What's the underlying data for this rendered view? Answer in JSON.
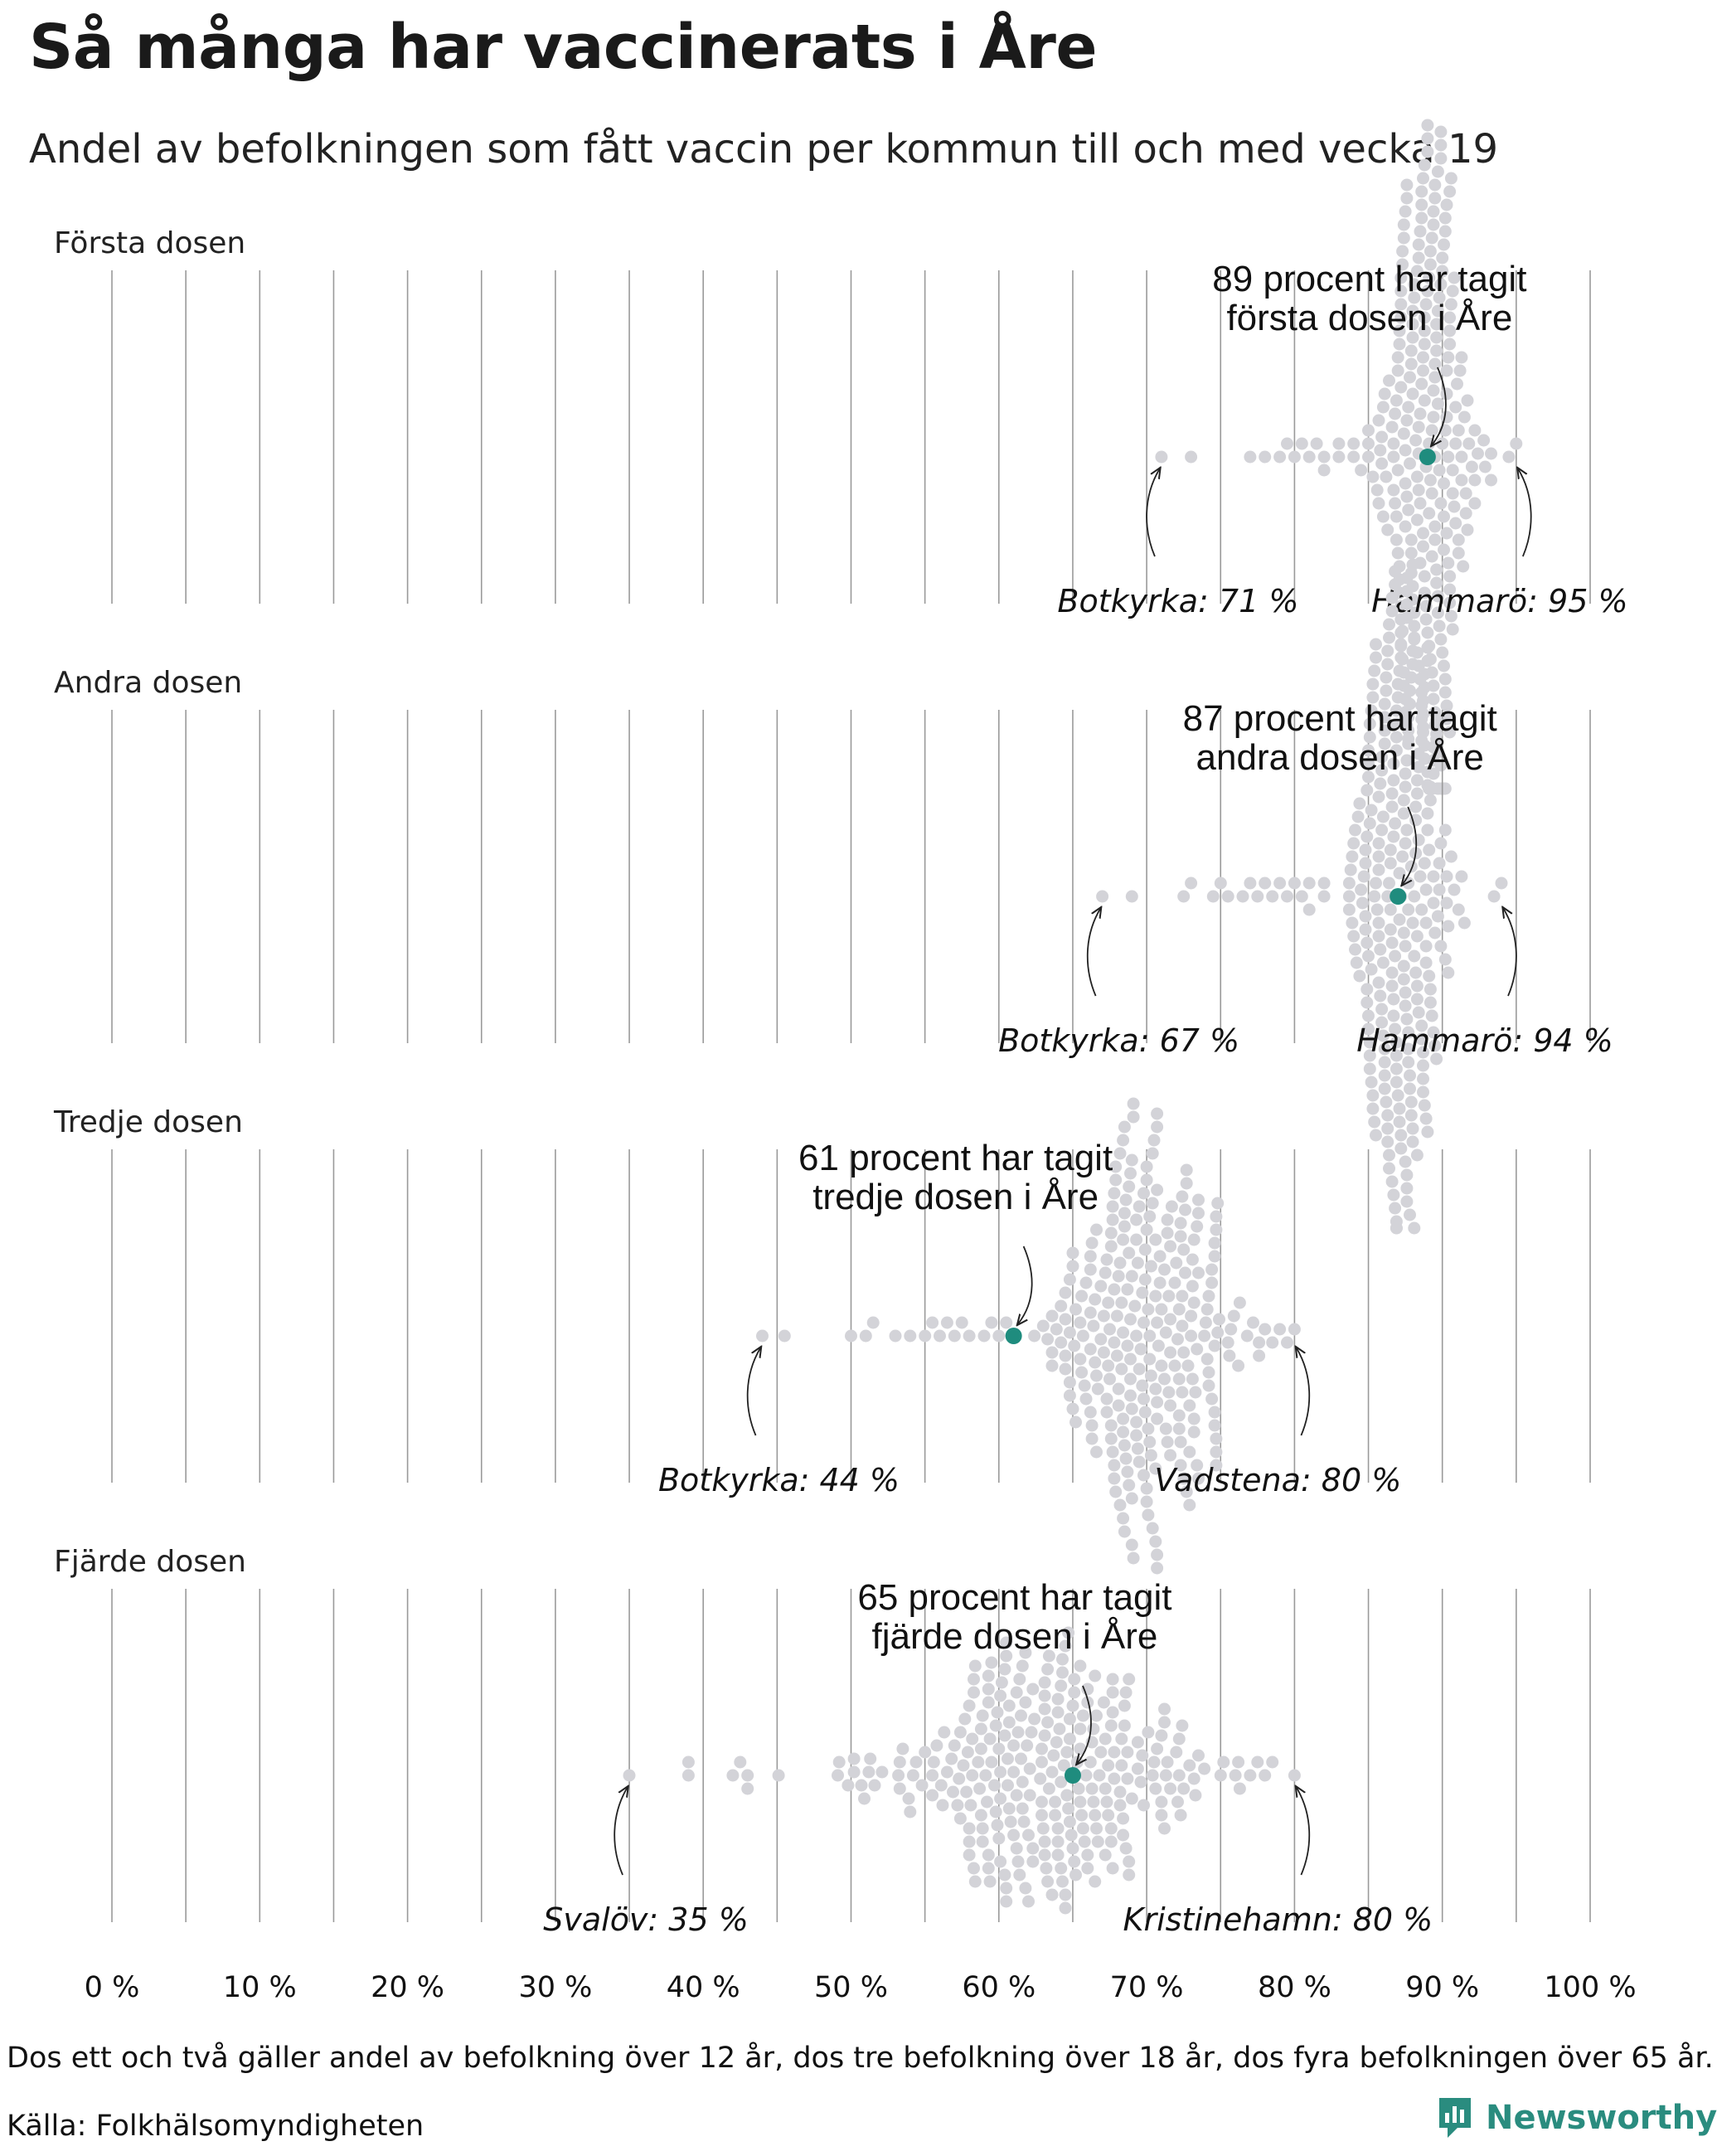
{
  "title": "Så många har vaccinerats i Åre",
  "subtitle": "Andel av befolkningen som fått vaccin per kommun till och med vecka 19",
  "footnote": "Dos ett och två gäller andel av befolkning över 12 år, dos tre befolkning över 18 år, dos fyra befolkningen över 65 år.",
  "source": "Källa: Folkhälsomyndigheten",
  "brand": "Newsworthy",
  "colors": {
    "highlight": "#1f8c7e",
    "dots": "#d3d3d8",
    "grid": "#9a9a9a",
    "text": "#1a1a1a"
  },
  "chart_data": {
    "type": "scatter",
    "subtype": "beeswarm",
    "x_axis": {
      "range": [
        0,
        100
      ],
      "unit": "%",
      "ticks": [
        "0 %",
        "10 %",
        "20 %",
        "30 %",
        "40 %",
        "50 %",
        "60 %",
        "70 %",
        "80 %",
        "90 %",
        "100 %"
      ],
      "grid": true,
      "minor_grid_step": 5
    },
    "panels": [
      {
        "name": "Första dosen",
        "highlight": {
          "value": 89,
          "label_line1": "89 procent har tagit",
          "label_line2": "första dosen i Åre"
        },
        "min": {
          "label": "Botkyrka: 71 %",
          "value": 71
        },
        "max": {
          "label": "Hammarö: 95 %",
          "value": 95
        },
        "distribution": {
          "n": 289,
          "mode": 89,
          "spread": 2.2,
          "tail_points": [
            71,
            73,
            77,
            78,
            79,
            79.5,
            80,
            80.5,
            81,
            81.5,
            82,
            82,
            83,
            83,
            84,
            84,
            84.5,
            85,
            85,
            94.5,
            95
          ]
        }
      },
      {
        "name": "Andra dosen",
        "highlight": {
          "value": 87,
          "label_line1": "87 procent har tagit",
          "label_line2": "andra dosen i Åre"
        },
        "min": {
          "label": "Botkyrka: 67 %",
          "value": 67
        },
        "max": {
          "label": "Hammarö: 94 %",
          "value": 94
        },
        "distribution": {
          "n": 289,
          "mode": 87,
          "spread": 2.5,
          "tail_points": [
            67,
            69,
            72.5,
            73,
            74.5,
            75,
            75.5,
            76.5,
            77,
            77.5,
            78,
            78.5,
            79,
            79.5,
            80,
            80.5,
            81,
            81,
            82,
            82,
            93.5,
            94
          ]
        }
      },
      {
        "name": "Tredje dosen",
        "highlight": {
          "value": 61,
          "label_line1": "61 procent har tagit",
          "label_line2": "tredje dosen i Åre"
        },
        "min": {
          "label": "Botkyrka: 44 %",
          "value": 44
        },
        "max": {
          "label": "Vadstena: 80 %",
          "value": 80
        },
        "distribution": {
          "n": 289,
          "mode": 70,
          "spread": 4.2,
          "tail_points": [
            44,
            45.5,
            50,
            51,
            51.5,
            53,
            54,
            55,
            55.5,
            56,
            56.5,
            57,
            57.5,
            58,
            59,
            59.5,
            60,
            60.5,
            78,
            78.5,
            79,
            79.5,
            80
          ]
        }
      },
      {
        "name": "Fjärde dosen",
        "highlight": {
          "value": 65,
          "label_line1": "65 procent har tagit",
          "label_line2": "fjärde dosen i Åre"
        },
        "min": {
          "label": "Svalöv: 35 %",
          "value": 35
        },
        "max": {
          "label": "Kristinehamn: 80 %",
          "value": 80
        },
        "distribution": {
          "n": 289,
          "mode": 63,
          "spread": 8,
          "tail_points": [
            35,
            39,
            39,
            42,
            42.5,
            43,
            43,
            75,
            76,
            77,
            77.5,
            78,
            78.5,
            80
          ]
        }
      }
    ]
  }
}
